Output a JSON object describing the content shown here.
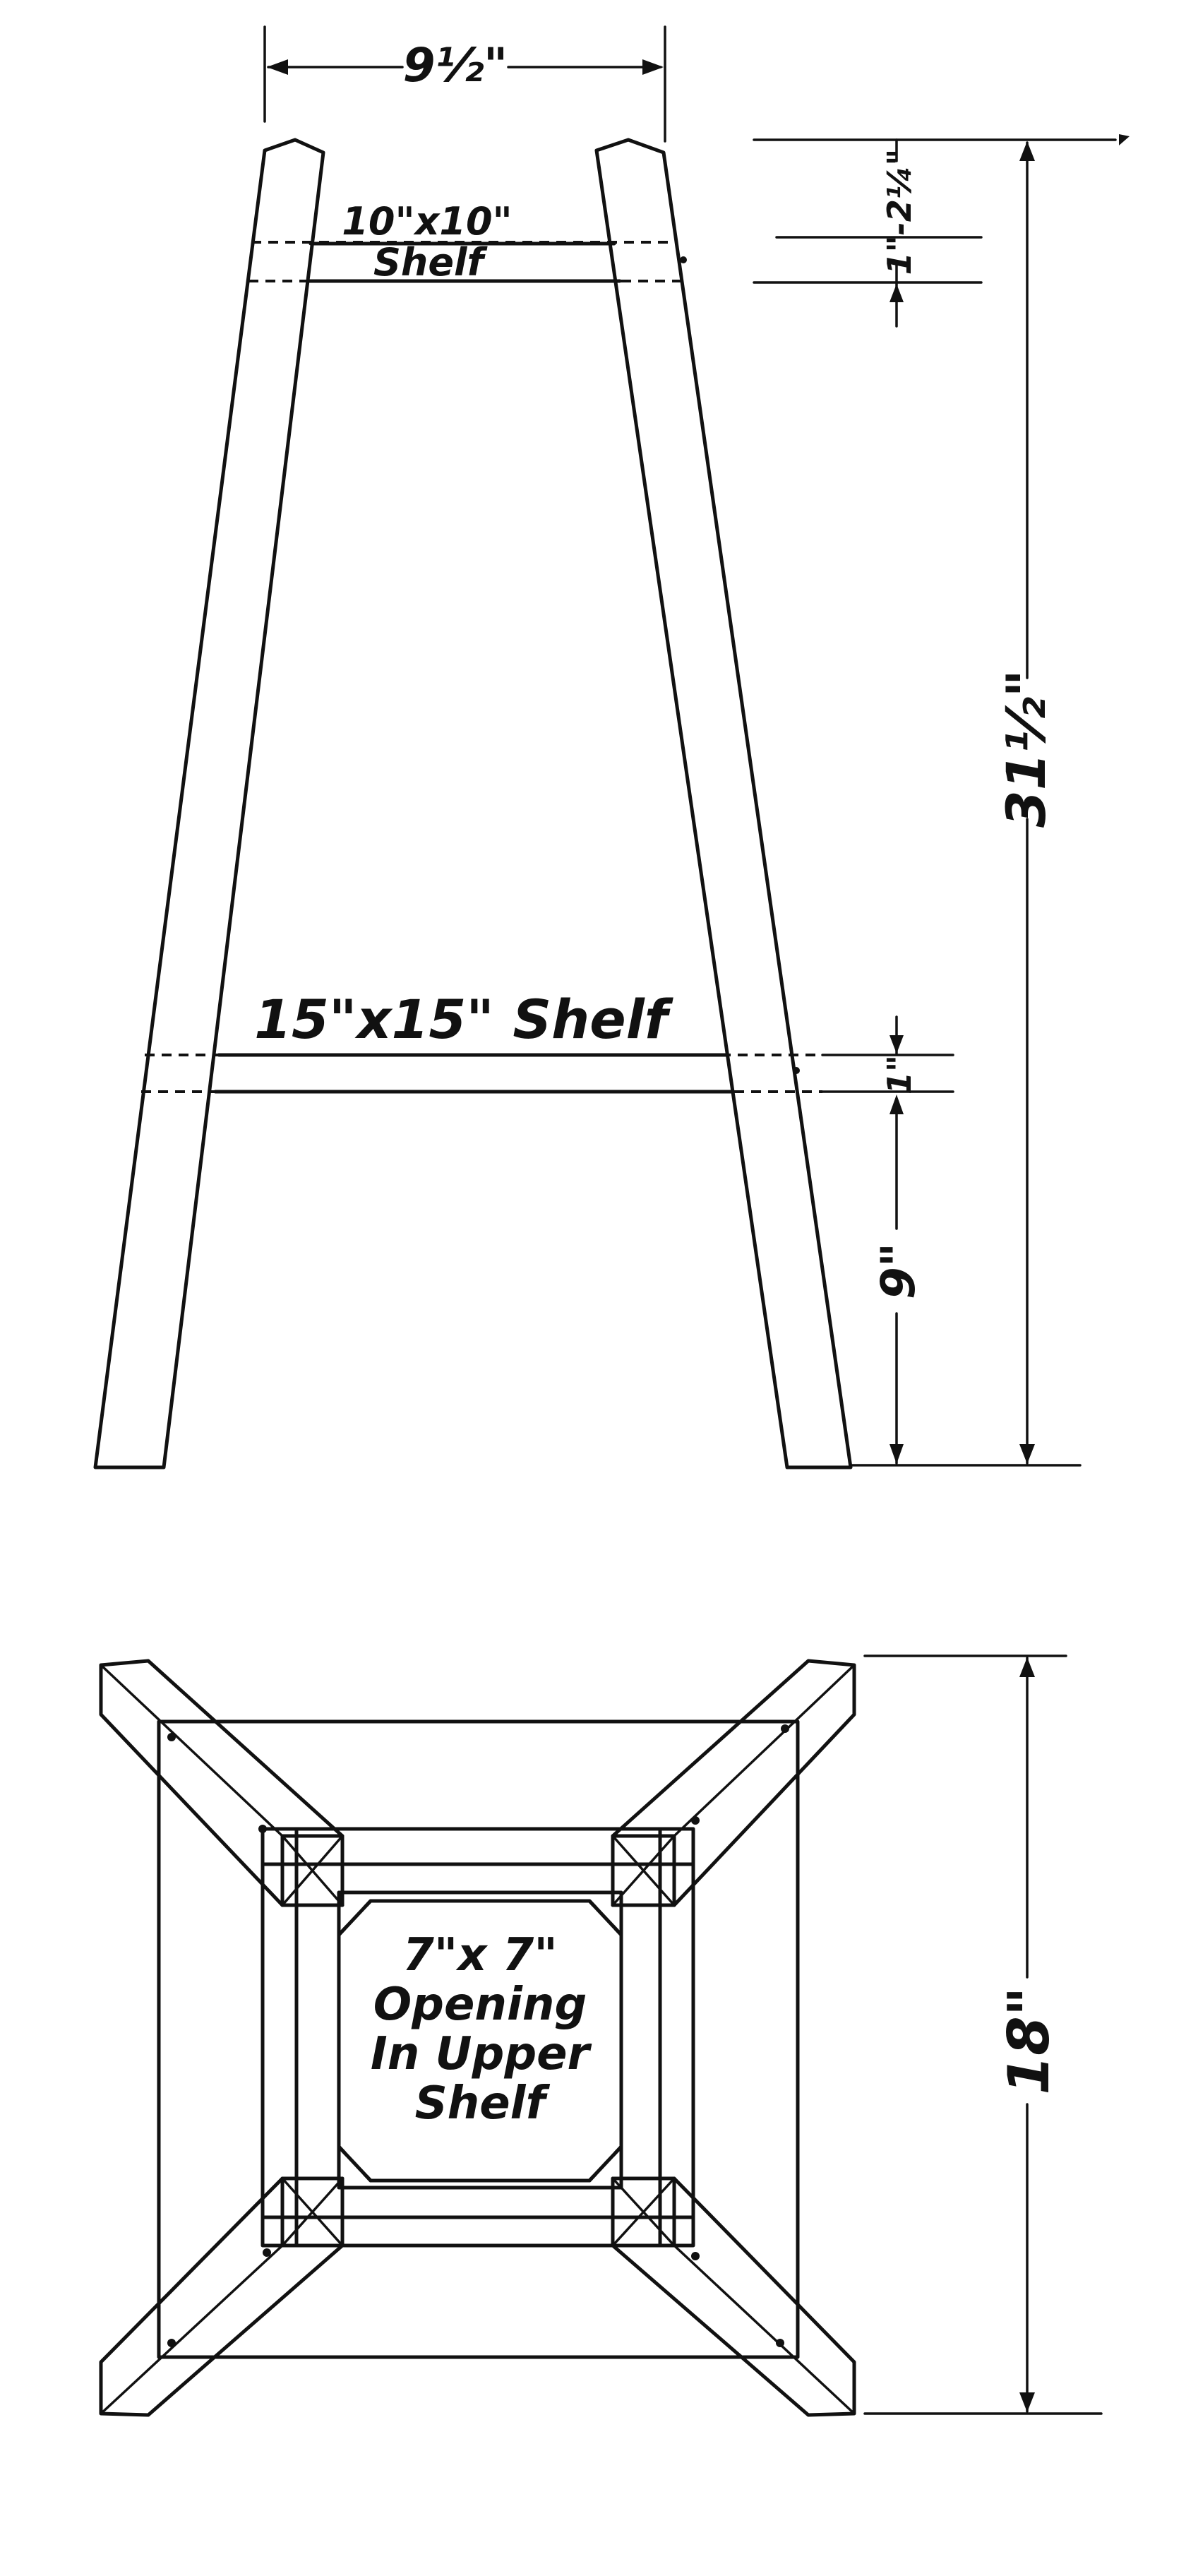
{
  "side_view": {
    "top_width_dim": "9½\"",
    "upper_shelf_label_line1": "10\"x10\"",
    "upper_shelf_label_line2": "Shelf",
    "upper_shelf_dim": "1\"-2¼\"",
    "lower_shelf_label": "15\"x15\" Shelf",
    "lower_shelf_thickness_dim": "1\"",
    "lower_shelf_height_dim": "9\"",
    "overall_height_dim": "31½\""
  },
  "plan_view": {
    "opening_line1": "7\"x 7\"",
    "opening_line2": "Opening",
    "opening_line3": "In Upper",
    "opening_line4": "Shelf",
    "overall_width_dim": "18\""
  }
}
